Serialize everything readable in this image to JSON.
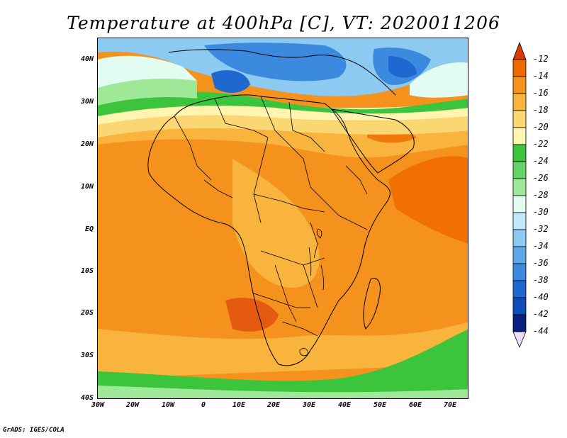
{
  "title": "Temperature at 400hPa [C], VT: 2020011206",
  "footer": "GrADS: IGES/COLA",
  "lat_labels": [
    "40N",
    "30N",
    "20N",
    "10N",
    "EQ",
    "10S",
    "20S",
    "30S",
    "40S"
  ],
  "lon_labels": [
    "30W",
    "20W",
    "10W",
    "0",
    "10E",
    "20E",
    "30E",
    "40E",
    "50E",
    "60E",
    "70E"
  ],
  "colorbar": {
    "labels": [
      "-12",
      "-14",
      "-16",
      "-18",
      "-20",
      "-22",
      "-24",
      "-26",
      "-28",
      "-30",
      "-32",
      "-34",
      "-36",
      "-38",
      "-40",
      "-42",
      "-44"
    ],
    "colors": [
      "#d93c00",
      "#ee6a00",
      "#f5921e",
      "#f8b43c",
      "#fbd774",
      "#fff4b0",
      "#3cc43c",
      "#68d268",
      "#9ee898",
      "#e2fcf2",
      "#c0e8f8",
      "#8ccaf2",
      "#5ca8e8",
      "#3c8ae0",
      "#1e68d0",
      "#0f4cb8",
      "#0a1e80"
    ],
    "top_arrow_color": "#d93c00",
    "bottom_arrow_color": "#e8e0f8"
  },
  "map_colors": {
    "warmest": "#e45a10",
    "warm": "#f5921e",
    "orange_light": "#f8b43c",
    "yellow": "#fbd774",
    "cream": "#fff4b0",
    "green": "#3cc43c",
    "green_light": "#9ee898",
    "cyan_pale": "#e2fcf2",
    "blue_light": "#8ccaf2",
    "blue": "#3c8ae0",
    "blue_dark": "#1e68d0",
    "border": "#000000"
  }
}
